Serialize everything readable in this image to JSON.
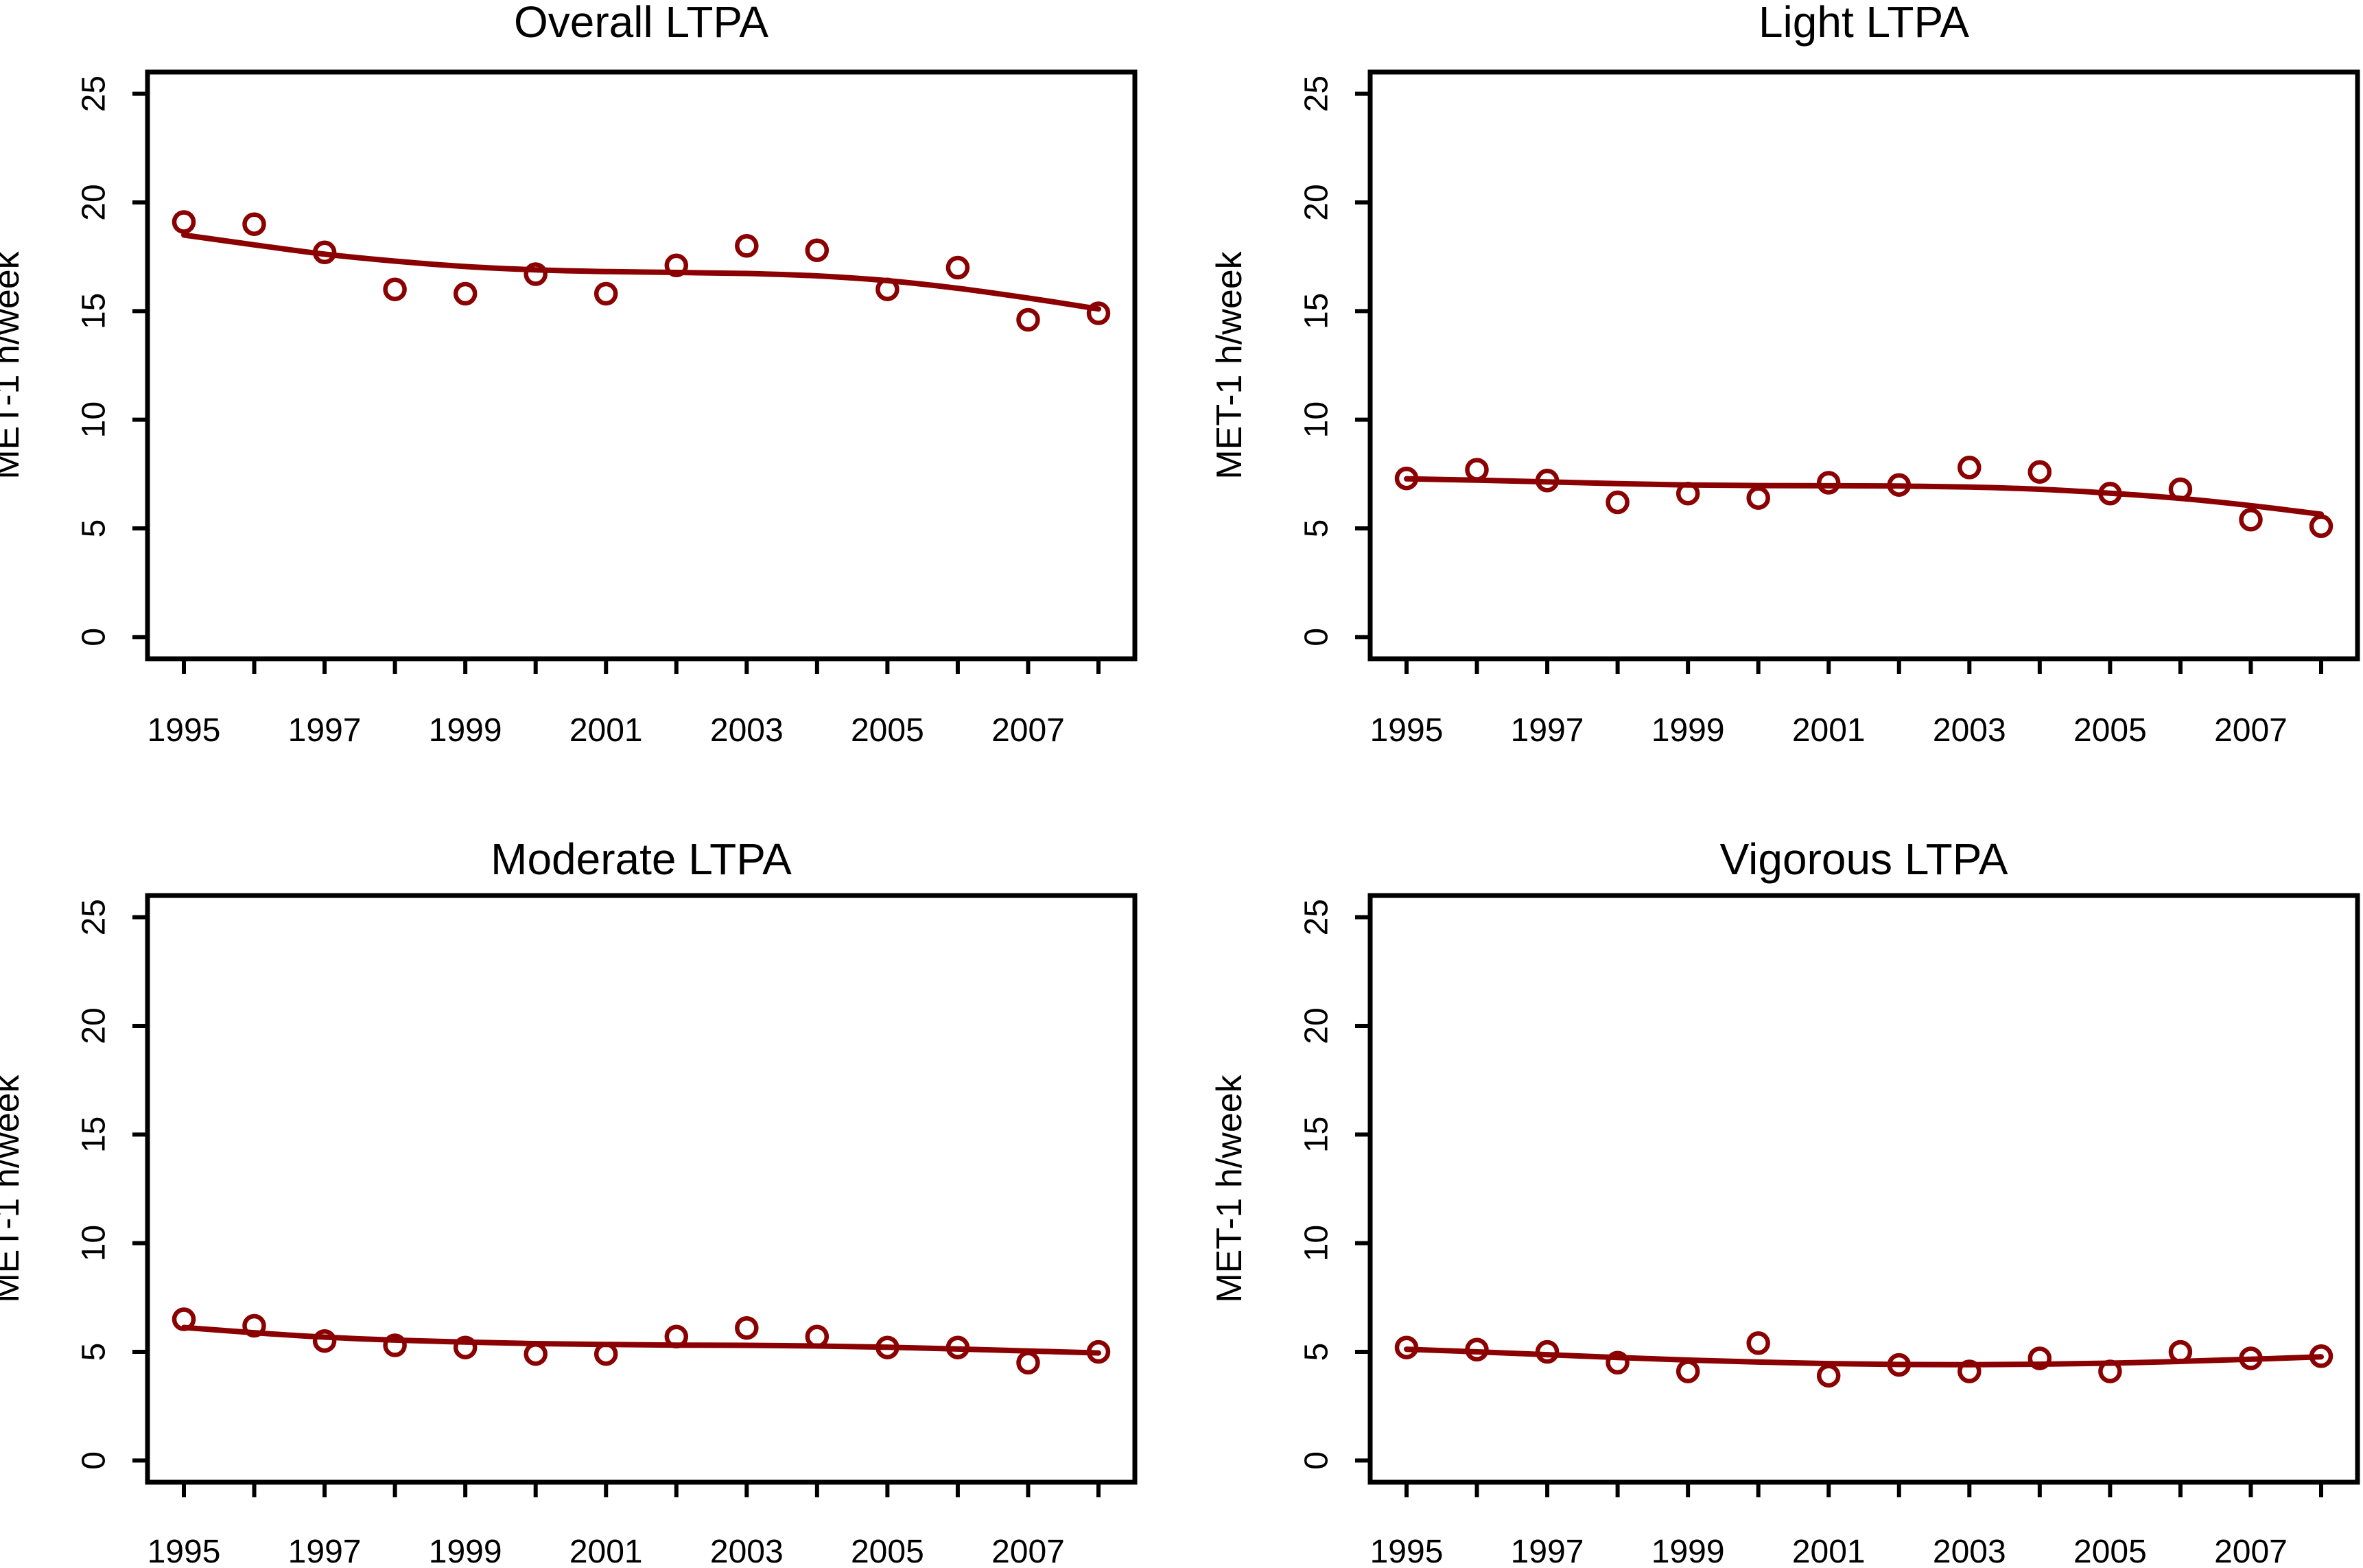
{
  "figure": {
    "background": "#FFFFFF",
    "axis_color": "#000000",
    "accent_color": "#8B0000",
    "y_axis_label": "MET-1 h/week",
    "x_tick_labels": [
      "1995",
      "1997",
      "1999",
      "2001",
      "2003",
      "2005",
      "2007"
    ],
    "y_tick_labels": [
      "0",
      "5",
      "10",
      "15",
      "20",
      "25"
    ]
  },
  "chart_data": [
    {
      "type": "scatter",
      "title": "Overall LTPA",
      "xlabel": "",
      "ylabel": "MET-1 h/week",
      "x": [
        1995,
        1996,
        1997,
        1998,
        1999,
        2000,
        2001,
        2002,
        2003,
        2004,
        2005,
        2006,
        2007,
        2008
      ],
      "y": [
        19.1,
        19.0,
        17.7,
        16.0,
        15.8,
        16.7,
        15.8,
        17.1,
        18.0,
        17.8,
        16.0,
        17.0,
        14.6,
        14.9
      ],
      "trend": [
        18.5,
        18.05,
        17.62,
        17.3,
        17.05,
        16.9,
        16.82,
        16.78,
        16.73,
        16.62,
        16.4,
        16.05,
        15.6,
        15.1
      ],
      "ylim": [
        0,
        25
      ],
      "y_ticks": [
        0,
        5,
        10,
        15,
        20,
        25
      ],
      "x_labeled_ticks": [
        1995,
        1997,
        1999,
        2001,
        2003,
        2005,
        2007
      ],
      "grid": false,
      "legend": "none",
      "marker": "open-circle",
      "series_color": "#8B0000"
    },
    {
      "type": "scatter",
      "title": "Light LTPA",
      "xlabel": "",
      "ylabel": "MET-1 h/week",
      "x": [
        1995,
        1996,
        1997,
        1998,
        1999,
        2000,
        2001,
        2002,
        2003,
        2004,
        2005,
        2006,
        2007,
        2008
      ],
      "y": [
        7.3,
        7.7,
        7.2,
        6.2,
        6.6,
        6.4,
        7.1,
        7.0,
        7.8,
        7.6,
        6.6,
        6.8,
        5.4,
        5.1
      ],
      "trend": [
        7.28,
        7.22,
        7.14,
        7.06,
        7.0,
        6.97,
        6.96,
        6.95,
        6.9,
        6.8,
        6.62,
        6.38,
        6.05,
        5.65
      ],
      "ylim": [
        0,
        25
      ],
      "y_ticks": [
        0,
        5,
        10,
        15,
        20,
        25
      ],
      "x_labeled_ticks": [
        1995,
        1997,
        1999,
        2001,
        2003,
        2005,
        2007
      ],
      "grid": false,
      "legend": "none",
      "marker": "open-circle",
      "series_color": "#8B0000"
    },
    {
      "type": "scatter",
      "title": "Moderate LTPA",
      "xlabel": "",
      "ylabel": "MET-1 h/week",
      "x": [
        1995,
        1996,
        1997,
        1998,
        1999,
        2000,
        2001,
        2002,
        2003,
        2004,
        2005,
        2006,
        2007,
        2008
      ],
      "y": [
        6.5,
        6.2,
        5.5,
        5.3,
        5.2,
        4.9,
        4.9,
        5.7,
        6.1,
        5.7,
        5.2,
        5.2,
        4.5,
        5.0
      ],
      "trend": [
        6.12,
        5.88,
        5.68,
        5.54,
        5.45,
        5.38,
        5.34,
        5.31,
        5.3,
        5.27,
        5.21,
        5.13,
        5.04,
        4.95
      ],
      "ylim": [
        0,
        25
      ],
      "y_ticks": [
        0,
        5,
        10,
        15,
        20,
        25
      ],
      "x_labeled_ticks": [
        1995,
        1997,
        1999,
        2001,
        2003,
        2005,
        2007
      ],
      "grid": false,
      "legend": "none",
      "marker": "open-circle",
      "series_color": "#8B0000"
    },
    {
      "type": "scatter",
      "title": "Vigorous LTPA",
      "xlabel": "",
      "ylabel": "MET-1 h/week",
      "x": [
        1995,
        1996,
        1997,
        1998,
        1999,
        2000,
        2001,
        2002,
        2003,
        2004,
        2005,
        2006,
        2007,
        2008
      ],
      "y": [
        5.2,
        5.1,
        5.0,
        4.5,
        4.1,
        5.4,
        3.9,
        4.4,
        4.1,
        4.7,
        4.1,
        5.0,
        4.7,
        4.8
      ],
      "trend": [
        5.12,
        5.0,
        4.87,
        4.74,
        4.62,
        4.53,
        4.46,
        4.42,
        4.41,
        4.43,
        4.48,
        4.56,
        4.66,
        4.77
      ],
      "ylim": [
        0,
        25
      ],
      "y_ticks": [
        0,
        5,
        10,
        15,
        20,
        25
      ],
      "x_labeled_ticks": [
        1995,
        1997,
        1999,
        2001,
        2003,
        2005,
        2007
      ],
      "grid": false,
      "legend": "none",
      "marker": "open-circle",
      "series_color": "#8B0000"
    }
  ]
}
